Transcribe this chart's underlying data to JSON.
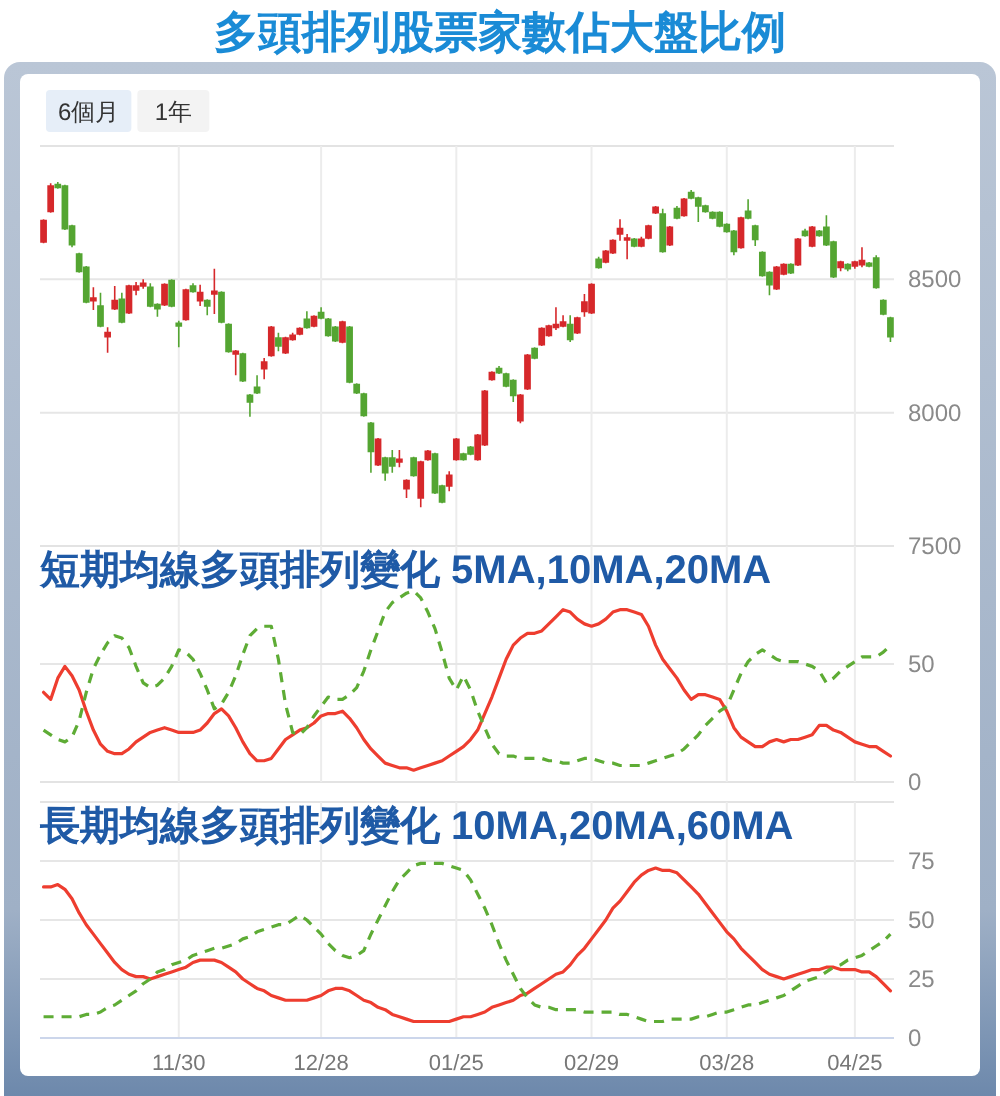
{
  "chart_data": [
    {
      "type": "candlestick",
      "title": "多頭排列股票家數佔大盤比例",
      "annotations": [
        "6個月",
        "1年"
      ],
      "categories": [
        null,
        null,
        null,
        null,
        null,
        null,
        null,
        null,
        null,
        null,
        null,
        null,
        null,
        null,
        null,
        null,
        null,
        null,
        null,
        null,
        null,
        null,
        null,
        null,
        null,
        null,
        null,
        null,
        null,
        null,
        null,
        null,
        null,
        null,
        null,
        null,
        null,
        null,
        null,
        null,
        null,
        null,
        null,
        null,
        null,
        null,
        null,
        null,
        null,
        null,
        null,
        null,
        null,
        null,
        null,
        null,
        null,
        null,
        null,
        null,
        null,
        null,
        null,
        null,
        null,
        null,
        null,
        null,
        null,
        null,
        null,
        null,
        null,
        null,
        null,
        null,
        null,
        null,
        null,
        null,
        null,
        null,
        null,
        null,
        null,
        null,
        null,
        null,
        null,
        null,
        null,
        null,
        null,
        null,
        null,
        null,
        null,
        null,
        null,
        null,
        null,
        null,
        null,
        null,
        null,
        null,
        null,
        null,
        null,
        null,
        null,
        null,
        null,
        null,
        null,
        null,
        null,
        null,
        null,
        null
      ],
      "ohlc": [
        [
          8640,
          8725,
          8635,
          8720
        ],
        [
          8755,
          8860,
          8750,
          8850
        ],
        [
          8855,
          8865,
          8840,
          8845
        ],
        [
          8850,
          8855,
          8685,
          8690
        ],
        [
          8700,
          8705,
          8620,
          8630
        ],
        [
          8595,
          8600,
          8525,
          8530
        ],
        [
          8545,
          8550,
          8410,
          8415
        ],
        [
          8420,
          8470,
          8385,
          8430
        ],
        [
          8400,
          8450,
          8320,
          8325
        ],
        [
          8285,
          8320,
          8225,
          8300
        ],
        [
          8390,
          8475,
          8385,
          8420
        ],
        [
          8425,
          8450,
          8335,
          8340
        ],
        [
          8375,
          8480,
          8370,
          8475
        ],
        [
          8460,
          8490,
          8440,
          8475
        ],
        [
          8475,
          8500,
          8465,
          8485
        ],
        [
          8470,
          8485,
          8395,
          8400
        ],
        [
          8405,
          8410,
          8360,
          8390
        ],
        [
          8405,
          8485,
          8400,
          8480
        ],
        [
          8495,
          8500,
          8395,
          8400
        ],
        [
          8335,
          8345,
          8245,
          8325
        ],
        [
          8350,
          8465,
          8345,
          8460
        ],
        [
          8475,
          8485,
          8450,
          8455
        ],
        [
          8420,
          8480,
          8400,
          8450
        ],
        [
          8420,
          8425,
          8365,
          8400
        ],
        [
          8445,
          8540,
          8370,
          8455
        ],
        [
          8450,
          8455,
          8335,
          8340
        ],
        [
          8330,
          8335,
          8225,
          8230
        ],
        [
          8220,
          8235,
          8140,
          8230
        ],
        [
          8220,
          8225,
          8115,
          8120
        ],
        [
          8065,
          8070,
          7985,
          8040
        ],
        [
          8095,
          8140,
          8070,
          8075
        ],
        [
          8165,
          8205,
          8125,
          8190
        ],
        [
          8215,
          8325,
          8210,
          8320
        ],
        [
          8280,
          8300,
          8230,
          8250
        ],
        [
          8225,
          8285,
          8220,
          8280
        ],
        [
          8275,
          8300,
          8270,
          8290
        ],
        [
          8295,
          8320,
          8290,
          8315
        ],
        [
          8350,
          8380,
          8315,
          8320
        ],
        [
          8325,
          8365,
          8320,
          8360
        ],
        [
          8375,
          8395,
          8350,
          8355
        ],
        [
          8350,
          8355,
          8285,
          8290
        ],
        [
          8320,
          8325,
          8265,
          8270
        ],
        [
          8265,
          8345,
          8260,
          8340
        ],
        [
          8320,
          8325,
          8110,
          8115
        ],
        [
          8105,
          8110,
          8070,
          8075
        ],
        [
          8070,
          8075,
          7985,
          7990
        ],
        [
          7960,
          7965,
          7775,
          7855
        ],
        [
          7805,
          7905,
          7800,
          7900
        ],
        [
          7830,
          7835,
          7745,
          7775
        ],
        [
          7830,
          7860,
          7775,
          7800
        ],
        [
          7815,
          7860,
          7795,
          7825
        ],
        [
          7715,
          7750,
          7680,
          7745
        ],
        [
          7830,
          7835,
          7760,
          7765
        ],
        [
          7680,
          7820,
          7645,
          7815
        ],
        [
          7825,
          7860,
          7820,
          7855
        ],
        [
          7845,
          7850,
          7695,
          7700
        ],
        [
          7725,
          7730,
          7660,
          7665
        ],
        [
          7725,
          7780,
          7705,
          7765
        ],
        [
          7825,
          7905,
          7820,
          7900
        ],
        [
          7845,
          7850,
          7820,
          7825
        ],
        [
          7870,
          7875,
          7840,
          7845
        ],
        [
          7825,
          7920,
          7820,
          7915
        ],
        [
          7880,
          8085,
          7875,
          8080
        ],
        [
          8125,
          8155,
          8120,
          8150
        ],
        [
          8165,
          8175,
          8145,
          8150
        ],
        [
          8145,
          8150,
          8095,
          8100
        ],
        [
          8120,
          8125,
          8040,
          8065
        ],
        [
          7970,
          8070,
          7960,
          8065
        ],
        [
          8090,
          8220,
          8085,
          8215
        ],
        [
          8240,
          8245,
          8200,
          8205
        ],
        [
          8255,
          8320,
          8250,
          8315
        ],
        [
          8290,
          8330,
          8285,
          8325
        ],
        [
          8320,
          8395,
          8310,
          8330
        ],
        [
          8325,
          8365,
          8320,
          8340
        ],
        [
          8330,
          8365,
          8265,
          8275
        ],
        [
          8300,
          8360,
          8295,
          8355
        ],
        [
          8380,
          8445,
          8360,
          8415
        ],
        [
          8375,
          8485,
          8370,
          8480
        ],
        [
          8575,
          8585,
          8540,
          8545
        ],
        [
          8565,
          8610,
          8560,
          8605
        ],
        [
          8600,
          8650,
          8595,
          8645
        ],
        [
          8670,
          8725,
          8645,
          8690
        ],
        [
          8650,
          8670,
          8575,
          8655
        ],
        [
          8650,
          8655,
          8620,
          8625
        ],
        [
          8625,
          8660,
          8620,
          8650
        ],
        [
          8655,
          8705,
          8650,
          8700
        ],
        [
          8750,
          8775,
          8745,
          8770
        ],
        [
          8745,
          8765,
          8600,
          8605
        ],
        [
          8630,
          8700,
          8625,
          8695
        ],
        [
          8765,
          8775,
          8725,
          8730
        ],
        [
          8740,
          8805,
          8735,
          8800
        ],
        [
          8825,
          8835,
          8800,
          8805
        ],
        [
          8805,
          8810,
          8715,
          8775
        ],
        [
          8775,
          8780,
          8750,
          8755
        ],
        [
          8750,
          8755,
          8725,
          8730
        ],
        [
          8750,
          8755,
          8695,
          8700
        ],
        [
          8705,
          8710,
          8675,
          8680
        ],
        [
          8680,
          8685,
          8590,
          8605
        ],
        [
          8620,
          8735,
          8615,
          8730
        ],
        [
          8755,
          8800,
          8725,
          8730
        ],
        [
          8700,
          8705,
          8625,
          8650
        ],
        [
          8600,
          8605,
          8510,
          8515
        ],
        [
          8525,
          8530,
          8440,
          8480
        ],
        [
          8465,
          8550,
          8460,
          8545
        ],
        [
          8520,
          8560,
          8515,
          8555
        ],
        [
          8555,
          8560,
          8520,
          8525
        ],
        [
          8555,
          8655,
          8550,
          8650
        ],
        [
          8680,
          8690,
          8660,
          8665
        ],
        [
          8625,
          8700,
          8620,
          8695
        ],
        [
          8680,
          8685,
          8660,
          8665
        ],
        [
          8695,
          8740,
          8625,
          8630
        ],
        [
          8640,
          8645,
          8505,
          8510
        ],
        [
          8545,
          8570,
          8530,
          8565
        ],
        [
          8555,
          8560,
          8530,
          8540
        ],
        [
          8550,
          8570,
          8540,
          8565
        ],
        [
          8555,
          8620,
          8545,
          8570
        ],
        [
          8560,
          8565,
          8545,
          8550
        ],
        [
          8580,
          8590,
          8465,
          8470
        ],
        [
          8420,
          8425,
          8365,
          8370
        ],
        [
          8355,
          8360,
          8265,
          8285
        ]
      ],
      "colors": [
        "#d6282b",
        "#d6282b",
        "#54a532",
        "#54a532",
        "#54a532",
        "#54a532",
        "#54a532",
        "#d6282b",
        "#54a532",
        "#d6282b",
        "#d6282b",
        "#54a532",
        "#d6282b",
        "#d6282b",
        "#d6282b",
        "#54a532",
        "#54a532",
        "#d6282b",
        "#54a532",
        "#54a532",
        "#d6282b",
        "#54a532",
        "#d6282b",
        "#54a532",
        "#d6282b",
        "#54a532",
        "#54a532",
        "#d6282b",
        "#54a532",
        "#54a532",
        "#54a532",
        "#d6282b",
        "#d6282b",
        "#54a532",
        "#d6282b",
        "#d6282b",
        "#d6282b",
        "#54a532",
        "#d6282b",
        "#54a532",
        "#54a532",
        "#54a532",
        "#d6282b",
        "#54a532",
        "#54a532",
        "#54a532",
        "#54a532",
        "#d6282b",
        "#54a532",
        "#54a532",
        "#d6282b",
        "#d6282b",
        "#54a532",
        "#d6282b",
        "#d6282b",
        "#54a532",
        "#54a532",
        "#d6282b",
        "#d6282b",
        "#54a532",
        "#54a532",
        "#d6282b",
        "#d6282b",
        "#d6282b",
        "#54a532",
        "#54a532",
        "#54a532",
        "#d6282b",
        "#d6282b",
        "#54a532",
        "#d6282b",
        "#d6282b",
        "#d6282b",
        "#d6282b",
        "#54a532",
        "#d6282b",
        "#d6282b",
        "#d6282b",
        "#54a532",
        "#d6282b",
        "#d6282b",
        "#d6282b",
        "#d6282b",
        "#54a532",
        "#d6282b",
        "#d6282b",
        "#d6282b",
        "#54a532",
        "#d6282b",
        "#54a532",
        "#d6282b",
        "#54a532",
        "#54a532",
        "#54a532",
        "#54a532",
        "#54a532",
        "#54a532",
        "#54a532",
        "#d6282b",
        "#54a532",
        "#54a532",
        "#54a532",
        "#54a532",
        "#d6282b",
        "#d6282b",
        "#54a532",
        "#d6282b",
        "#54a532",
        "#d6282b",
        "#54a532",
        "#54a532",
        "#54a532",
        "#d6282b",
        "#54a532",
        "#d6282b",
        "#d6282b",
        "#54a532",
        "#54a532",
        "#54a532",
        "#54a532"
      ],
      "ylim": [
        7500,
        9000
      ],
      "yticks": [
        7500,
        8000,
        8500
      ],
      "grid": true,
      "tick_labels": "y"
    },
    {
      "type": "line",
      "title": "短期均線多頭排列變化 5MA,10MA,20MA",
      "categories": [
        null,
        null,
        null,
        null,
        null,
        null,
        null,
        null,
        null,
        null,
        null,
        null,
        null,
        null,
        null,
        null,
        null,
        null,
        null,
        null,
        null,
        null,
        null,
        null,
        null,
        null,
        null,
        null,
        null,
        null,
        null,
        null,
        null,
        null,
        null,
        null,
        null,
        null,
        null,
        null,
        null,
        null,
        null,
        null,
        null,
        null,
        null,
        null,
        null,
        null,
        null,
        null,
        null,
        null,
        null,
        null,
        null,
        null,
        null,
        null,
        null,
        null,
        null,
        null,
        null,
        null,
        null,
        null,
        null,
        null,
        null,
        null,
        null,
        null,
        null,
        null,
        null,
        null,
        null,
        null,
        null,
        null,
        null,
        null,
        null,
        null,
        null,
        null,
        null,
        null,
        null,
        null,
        null,
        null,
        null,
        null,
        null,
        null,
        null,
        null,
        null,
        null,
        null,
        null,
        null,
        null,
        null,
        null,
        null,
        null,
        null,
        null,
        null,
        null,
        null,
        null,
        null,
        null,
        null,
        null
      ],
      "series": [
        {
          "color": "#ee3d2f",
          "line_style": "solid",
          "values": [
            38,
            35,
            44,
            49,
            45,
            39,
            30,
            22,
            16,
            13,
            12,
            12,
            14,
            17,
            19,
            21,
            22,
            23,
            22,
            21,
            21,
            21,
            22,
            25,
            29,
            31,
            28,
            23,
            17,
            12,
            9,
            9,
            10,
            14,
            18,
            20,
            22,
            23,
            25,
            28,
            29,
            29,
            30,
            27,
            23,
            18,
            14,
            11,
            8,
            7,
            6,
            6,
            5,
            6,
            7,
            8,
            9,
            11,
            13,
            15,
            18,
            22,
            29,
            36,
            44,
            52,
            58,
            61,
            63,
            63,
            64,
            67,
            70,
            73,
            72,
            69,
            67,
            66,
            67,
            69,
            72,
            73,
            73,
            72,
            71,
            66,
            58,
            52,
            48,
            44,
            39,
            35,
            37,
            37,
            36,
            35,
            30,
            23,
            19,
            17,
            15,
            15,
            17,
            18,
            17,
            18,
            18,
            19,
            20,
            24,
            24,
            22,
            21,
            19,
            17,
            16,
            15,
            15,
            13,
            11
          ]
        },
        {
          "color": "#5eac35",
          "line_style": "dashed",
          "values": [
            22,
            20,
            18,
            17,
            19,
            26,
            38,
            48,
            54,
            59,
            62,
            61,
            57,
            49,
            42,
            40,
            41,
            44,
            49,
            56,
            55,
            52,
            46,
            39,
            31,
            33,
            38,
            45,
            54,
            62,
            65,
            66,
            66,
            52,
            33,
            21,
            20,
            23,
            28,
            32,
            36,
            35,
            35,
            37,
            40,
            47,
            56,
            64,
            72,
            76,
            78,
            80,
            81,
            78,
            72,
            65,
            55,
            44,
            39,
            45,
            39,
            30,
            23,
            16,
            12,
            11,
            11,
            10,
            10,
            10,
            10,
            9,
            9,
            8,
            8,
            9,
            10,
            10,
            9,
            8,
            8,
            7,
            7,
            7,
            7,
            8,
            9,
            10,
            11,
            12,
            14,
            17,
            20,
            24,
            27,
            30,
            32,
            39,
            46,
            51,
            54,
            56,
            54,
            52,
            51,
            51,
            51,
            50,
            49,
            47,
            42,
            44,
            47,
            49,
            51,
            53,
            53,
            53,
            55,
            58
          ]
        }
      ],
      "ylim": [
        0,
        100
      ],
      "yticks": [
        0,
        50
      ],
      "grid": "x",
      "ref_lines": [
        {
          "axis": "y",
          "value": 50,
          "color": "#e6e6e6"
        }
      ],
      "tick_labels": "y"
    },
    {
      "type": "line",
      "title": "長期均線多頭排列變化 10MA,20MA,60MA",
      "categories": [
        null,
        null,
        null,
        null,
        null,
        null,
        null,
        null,
        null,
        null,
        null,
        null,
        null,
        null,
        null,
        null,
        null,
        null,
        null,
        "11/30",
        null,
        null,
        null,
        null,
        null,
        null,
        null,
        null,
        null,
        null,
        null,
        null,
        null,
        null,
        null,
        null,
        null,
        null,
        null,
        "12/28",
        null,
        null,
        null,
        null,
        null,
        null,
        null,
        null,
        null,
        null,
        null,
        null,
        null,
        null,
        null,
        null,
        null,
        null,
        "01/25",
        null,
        null,
        null,
        null,
        null,
        null,
        null,
        null,
        null,
        null,
        null,
        null,
        null,
        null,
        null,
        null,
        null,
        null,
        "02/29",
        null,
        null,
        null,
        null,
        null,
        null,
        null,
        null,
        null,
        null,
        null,
        null,
        null,
        null,
        null,
        null,
        null,
        null,
        "03/28",
        null,
        null,
        null,
        null,
        null,
        null,
        null,
        null,
        null,
        null,
        null,
        null,
        null,
        null,
        null,
        null,
        null,
        "04/25",
        null,
        null,
        null,
        null,
        null
      ],
      "series": [
        {
          "color": "#ee3d2f",
          "line_style": "solid",
          "values": [
            64,
            64,
            65,
            63,
            59,
            53,
            48,
            44,
            40,
            36,
            32,
            29,
            27,
            26,
            26,
            25,
            26,
            27,
            28,
            29,
            30,
            32,
            33,
            33,
            33,
            32,
            30,
            28,
            25,
            23,
            21,
            20,
            18,
            17,
            16,
            16,
            16,
            16,
            17,
            18,
            20,
            21,
            21,
            20,
            18,
            16,
            15,
            13,
            12,
            10,
            9,
            8,
            7,
            7,
            7,
            7,
            7,
            7,
            8,
            9,
            9,
            10,
            11,
            13,
            14,
            15,
            16,
            18,
            19,
            21,
            23,
            25,
            27,
            28,
            31,
            35,
            38,
            42,
            46,
            50,
            55,
            58,
            62,
            66,
            69,
            71,
            72,
            71,
            71,
            70,
            67,
            64,
            61,
            57,
            53,
            49,
            45,
            42,
            38,
            35,
            32,
            29,
            27,
            26,
            25,
            26,
            27,
            28,
            29,
            29,
            30,
            30,
            29,
            29,
            29,
            28,
            28,
            26,
            23,
            20
          ]
        },
        {
          "color": "#5eac35",
          "line_style": "dashed",
          "values": [
            9,
            9,
            9,
            9,
            9,
            9,
            10,
            10,
            11,
            13,
            14,
            16,
            18,
            20,
            23,
            25,
            28,
            29,
            31,
            32,
            33,
            35,
            36,
            37,
            38,
            38,
            39,
            40,
            42,
            43,
            45,
            46,
            47,
            48,
            48,
            50,
            52,
            50,
            47,
            44,
            40,
            37,
            35,
            34,
            35,
            37,
            44,
            50,
            56,
            62,
            67,
            70,
            73,
            74,
            74,
            74,
            74,
            73,
            72,
            71,
            67,
            61,
            55,
            48,
            40,
            33,
            27,
            21,
            17,
            14,
            13,
            13,
            12,
            12,
            12,
            12,
            11,
            11,
            11,
            11,
            11,
            10,
            10,
            9,
            8,
            7,
            7,
            7,
            8,
            8,
            8,
            8,
            9,
            9,
            10,
            11,
            11,
            12,
            13,
            14,
            14,
            15,
            16,
            17,
            18,
            20,
            22,
            24,
            25,
            26,
            28,
            30,
            31,
            33,
            34,
            35,
            37,
            39,
            41,
            44
          ]
        }
      ],
      "ylim": [
        0,
        100
      ],
      "yticks": [
        0,
        25,
        50,
        75
      ],
      "grid": true
    }
  ]
}
